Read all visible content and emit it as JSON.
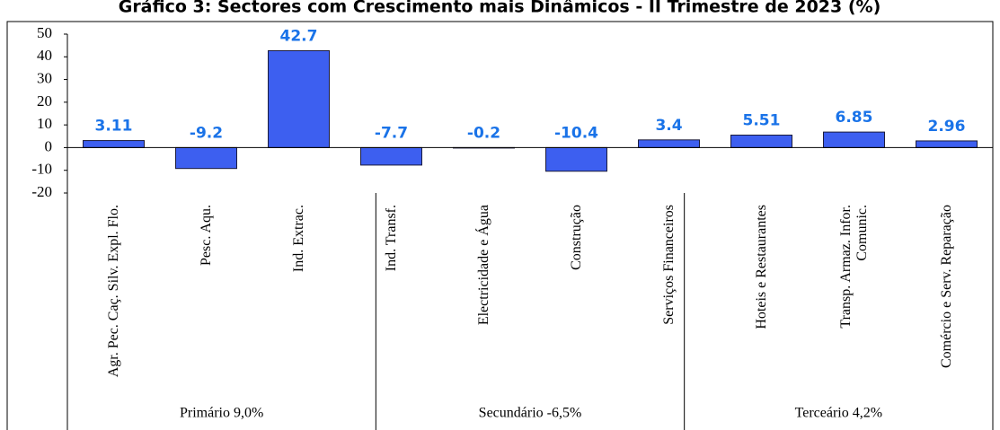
{
  "chart_data": {
    "type": "bar",
    "title": "Gráfico 3: Sectores com Crescimento mais Dinâmicos - II Trimestre de 2023 (%)",
    "categories": [
      "Agr. Pec. Caç. Silv. Expl. Flo.",
      "Pesc. Aqu.",
      "Ind. Extrac.",
      "Ind. Transf.",
      "Electricidade e Água",
      "Construção",
      "Serviços Financeiros",
      "Hoteis e Restaurantes",
      "Transp. Armaz. Infor. Comunic.",
      "Comércio e Serv. Reparação"
    ],
    "values": [
      3.11,
      -9.2,
      42.7,
      -7.7,
      -0.2,
      -10.4,
      3.4,
      5.51,
      6.85,
      2.96
    ],
    "groups": [
      "Primário 9,0%",
      "Secundário -6,5%",
      "Terceário  4,2%"
    ],
    "color": "#3d5ff0",
    "label_color": "#1a73e8",
    "ylim": [
      -20,
      50
    ],
    "yticks": [
      -20,
      -10,
      0,
      10,
      20,
      30,
      40,
      50
    ]
  }
}
